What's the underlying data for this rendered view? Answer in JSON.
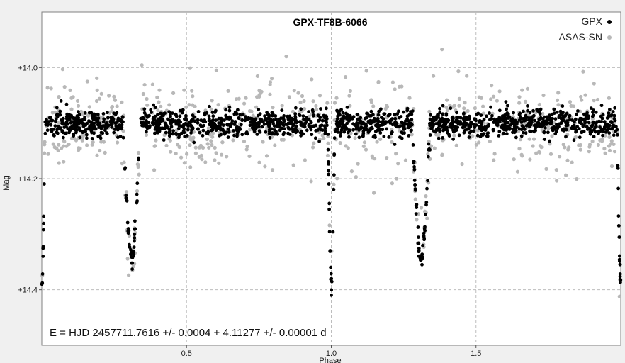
{
  "chart_data": {
    "type": "scatter",
    "title": "GPX-TF8B-6066",
    "xlabel": "Phase",
    "ylabel": "Mag",
    "xlim": [
      0.0,
      2.0
    ],
    "ylim": [
      14.5,
      13.9
    ],
    "y_inverted": true,
    "grid": true,
    "legend_position": "top-right",
    "x_ticks": [
      {
        "value": 0.5,
        "label": "0.5"
      },
      {
        "value": 1.0,
        "label": "1.0"
      },
      {
        "value": 1.5,
        "label": "1.5"
      }
    ],
    "y_ticks": [
      {
        "value": 14.0,
        "label": "+14.0"
      },
      {
        "value": 14.2,
        "label": "+14.2"
      },
      {
        "value": 14.4,
        "label": "+14.4"
      }
    ],
    "annotation": "E = HJD 2457711.7616 +/- 0.0004 + 4.11277 +/- 0.00001 d",
    "model": {
      "period_repeat": 1.0,
      "baseline_mag": 14.1,
      "primary_eclipse": {
        "phase": 0.0,
        "depth_mag": 0.3,
        "half_width": 0.012
      },
      "secondary_eclipse": {
        "phase": 0.31,
        "depth_mag": 0.25,
        "half_width": 0.03
      },
      "gpx_scatter_mag": 0.012,
      "asassn_scatter_mag": 0.04
    },
    "series": [
      {
        "name": "GPX",
        "color": "#000000",
        "point_count": 1700
      },
      {
        "name": "ASAS-SN",
        "color": "#b8b8b8",
        "point_count": 700
      }
    ]
  }
}
